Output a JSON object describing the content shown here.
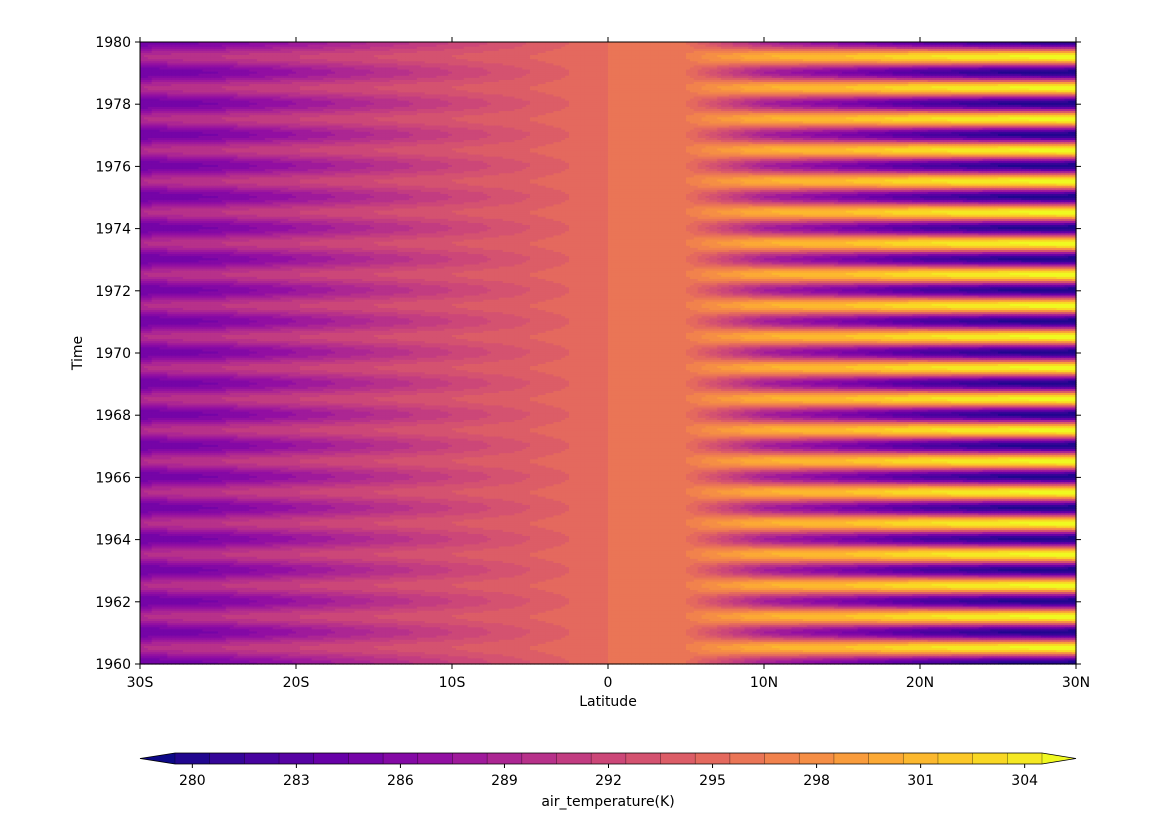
{
  "chart_data": {
    "type": "heatmap",
    "title": "",
    "xlabel": "Latitude",
    "ylabel": "Time",
    "x_range": [
      -30,
      30
    ],
    "y_range": [
      1960,
      1980
    ],
    "x_ticks": [
      {
        "value": -30,
        "label": "30S"
      },
      {
        "value": -20,
        "label": "20S"
      },
      {
        "value": -10,
        "label": "10S"
      },
      {
        "value": 0,
        "label": "0"
      },
      {
        "value": 10,
        "label": "10N"
      },
      {
        "value": 20,
        "label": "20N"
      },
      {
        "value": 30,
        "label": "30N"
      }
    ],
    "y_ticks": [
      {
        "value": 1960,
        "label": "1960"
      },
      {
        "value": 1962,
        "label": "1962"
      },
      {
        "value": 1964,
        "label": "1964"
      },
      {
        "value": 1966,
        "label": "1966"
      },
      {
        "value": 1968,
        "label": "1968"
      },
      {
        "value": 1970,
        "label": "1970"
      },
      {
        "value": 1972,
        "label": "1972"
      },
      {
        "value": 1974,
        "label": "1974"
      },
      {
        "value": 1976,
        "label": "1976"
      },
      {
        "value": 1978,
        "label": "1978"
      },
      {
        "value": 1980,
        "label": "1980"
      }
    ],
    "annual_profile": {
      "latitude": [
        -30,
        -25,
        -20,
        -15,
        -10,
        -5,
        0,
        5,
        7,
        10,
        15,
        20,
        25,
        30
      ],
      "january": [
        285,
        286,
        288,
        290,
        292,
        294,
        296,
        296,
        293,
        289,
        286,
        283,
        281,
        280
      ],
      "july": [
        290,
        291,
        292,
        293,
        294,
        295,
        296,
        297,
        299,
        301,
        302,
        304,
        305,
        306
      ]
    },
    "colorbar": {
      "label": "air_temperature(K)",
      "levels": [
        280,
        281,
        282,
        283,
        284,
        285,
        286,
        287,
        288,
        289,
        290,
        291,
        292,
        293,
        294,
        295,
        296,
        297,
        298,
        299,
        300,
        301,
        302,
        303,
        304,
        305
      ],
      "tick_values": [
        280,
        283,
        286,
        289,
        292,
        295,
        298,
        301,
        304
      ],
      "extend": "both",
      "colormap": "plasma",
      "colors": [
        "#0d0887",
        "#41049d",
        "#6a00a8",
        "#8f0da4",
        "#b12a90",
        "#cc4778",
        "#e16462",
        "#f2844b",
        "#fca636",
        "#fcce25",
        "#f0f921"
      ]
    }
  }
}
